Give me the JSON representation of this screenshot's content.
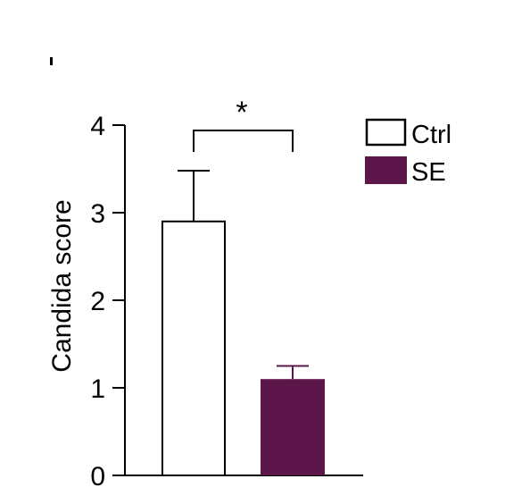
{
  "chart_data": {
    "type": "bar",
    "categories": [
      "Ctrl",
      "SE"
    ],
    "values": [
      2.9,
      1.1
    ],
    "errors": [
      0.58,
      0.15
    ],
    "colors": [
      "#ffffff",
      "#5c1649"
    ],
    "edge_colors": [
      "#000000",
      "#5c1649"
    ],
    "title": "",
    "xlabel": "",
    "ylabel": "Candida score",
    "ylim": [
      0,
      4
    ],
    "yticks": [
      "0",
      "1",
      "2",
      "3",
      "4"
    ],
    "legend": {
      "position": "top-right",
      "entries": [
        {
          "label": "Ctrl",
          "color": "#ffffff"
        },
        {
          "label": "SE",
          "color": "#5c1649"
        }
      ]
    },
    "significance": {
      "between": [
        "Ctrl",
        "SE"
      ],
      "label": "*"
    }
  }
}
